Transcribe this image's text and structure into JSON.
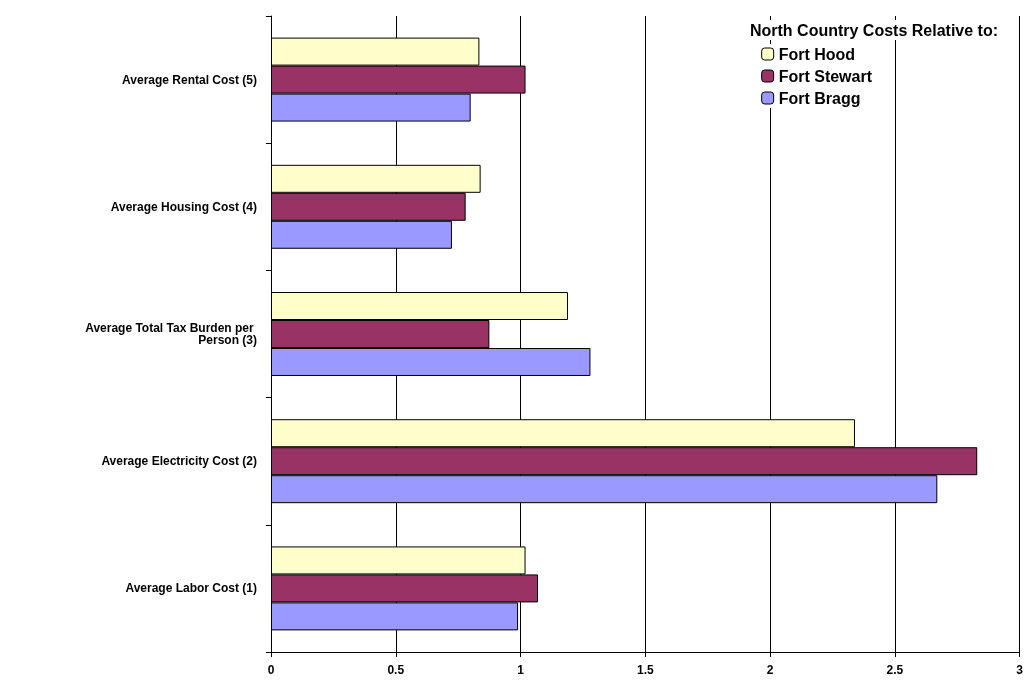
{
  "chart_data": {
    "type": "bar",
    "orientation": "horizontal",
    "categories": [
      "Average Rental Cost (5)",
      "Average Housing Cost (4)",
      "Average Total Tax Burden per Person (3)",
      "Average Electricity Cost (2)",
      "Average Labor Cost (1)"
    ],
    "series": [
      {
        "name": "Fort Hood",
        "color": "#ffffcc",
        "values": [
          0.835,
          0.84,
          1.19,
          2.34,
          1.02
        ]
      },
      {
        "name": "Fort Stewart",
        "color": "#993366",
        "values": [
          1.02,
          0.78,
          0.875,
          2.83,
          1.07
        ]
      },
      {
        "name": "Fort Bragg",
        "color": "#9999ff",
        "values": [
          0.8,
          0.725,
          1.28,
          2.67,
          0.99
        ]
      }
    ],
    "xlim": [
      0,
      3
    ],
    "xticks": [
      0,
      0.5,
      1,
      1.5,
      2,
      2.5,
      3
    ],
    "grid": "x",
    "legend": "top right",
    "legend_title": "North Country Costs Relative to:"
  }
}
